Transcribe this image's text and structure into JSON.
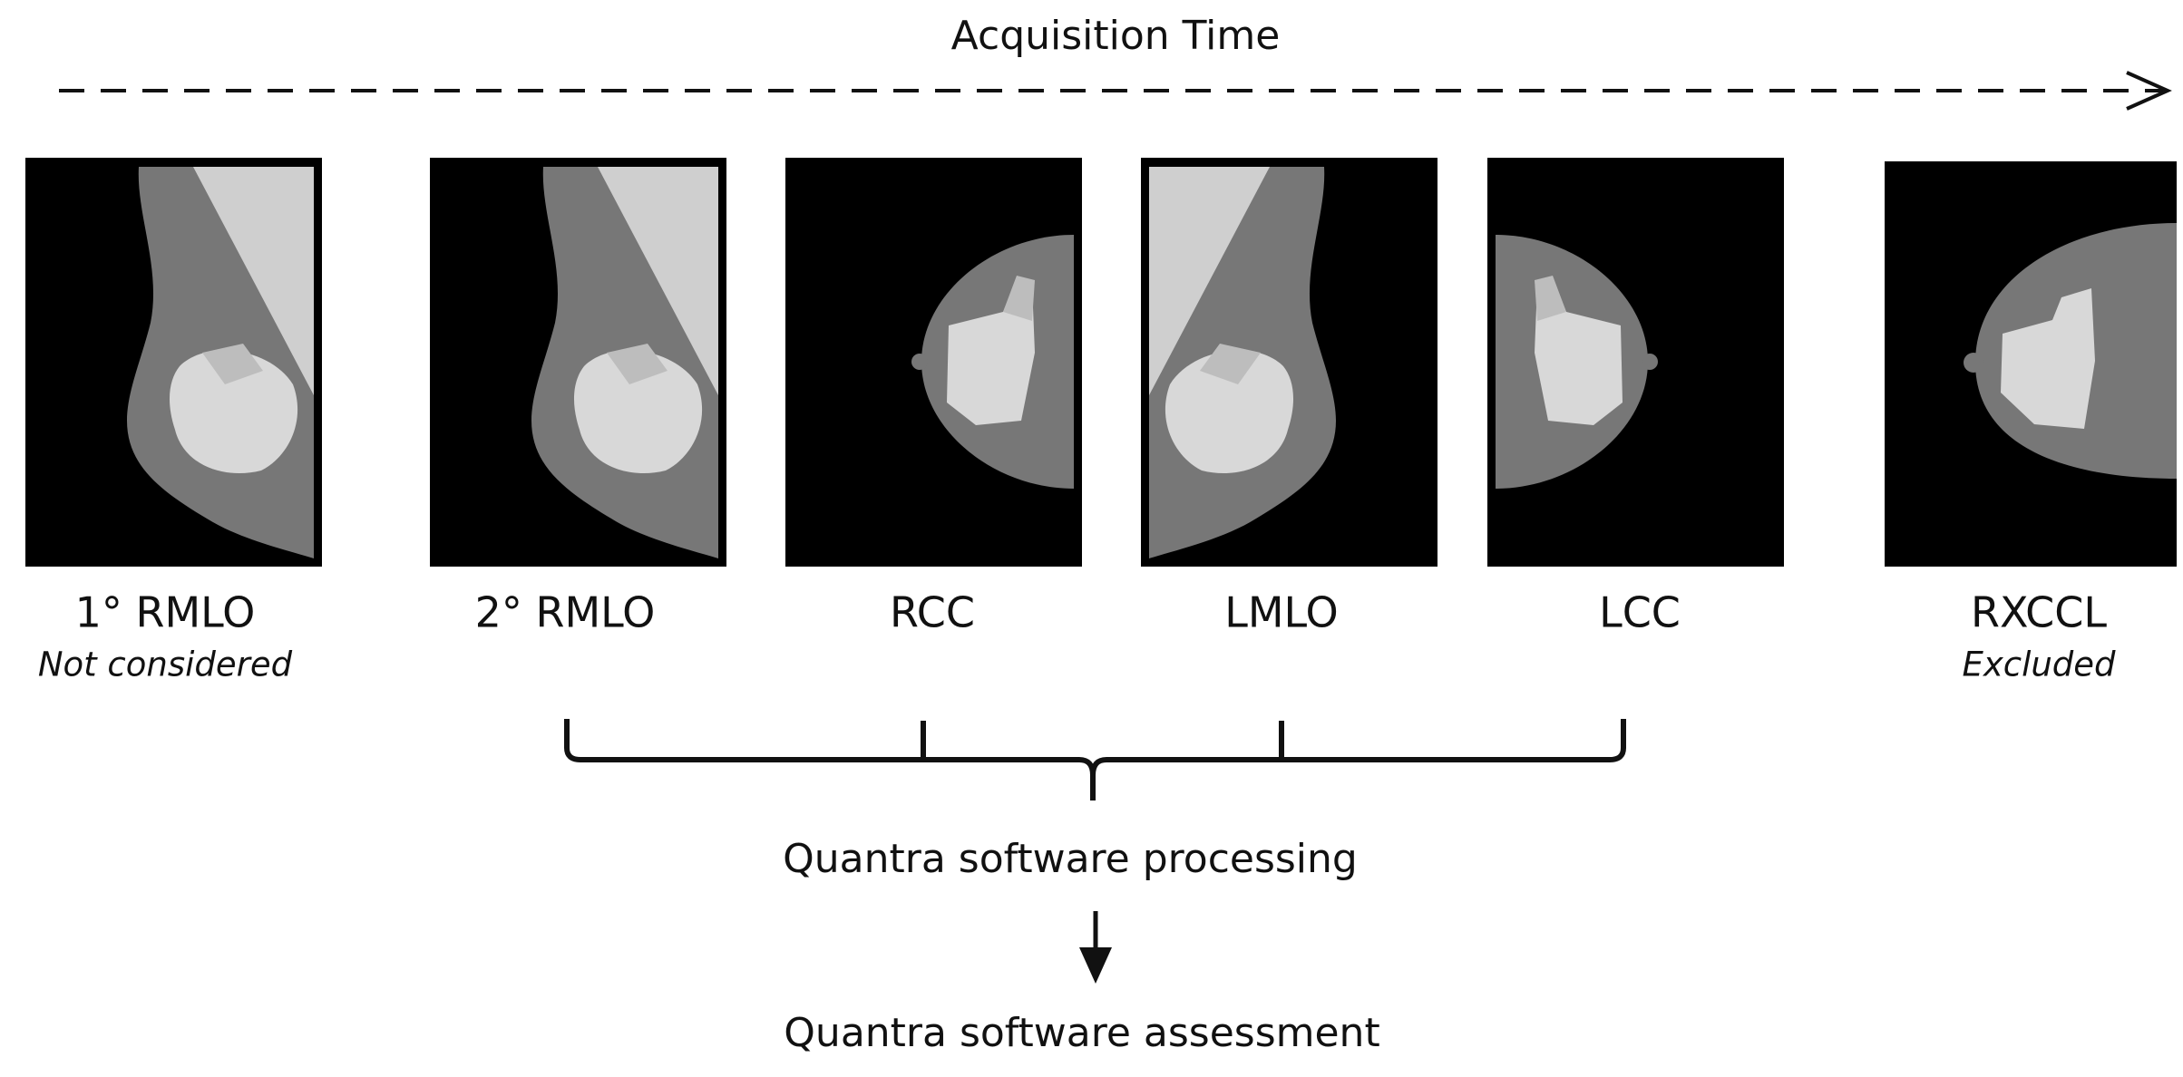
{
  "header": {
    "title": "Acquisition Time"
  },
  "views": [
    {
      "label": "1° RMLO",
      "note": "Not considered"
    },
    {
      "label": "2° RMLO"
    },
    {
      "label": "RCC"
    },
    {
      "label": "LMLO"
    },
    {
      "label": "LCC"
    },
    {
      "label": "RXCCL",
      "note": "Excluded"
    }
  ],
  "processing": "Quantra software processing",
  "assessment": "Quantra software assessment"
}
